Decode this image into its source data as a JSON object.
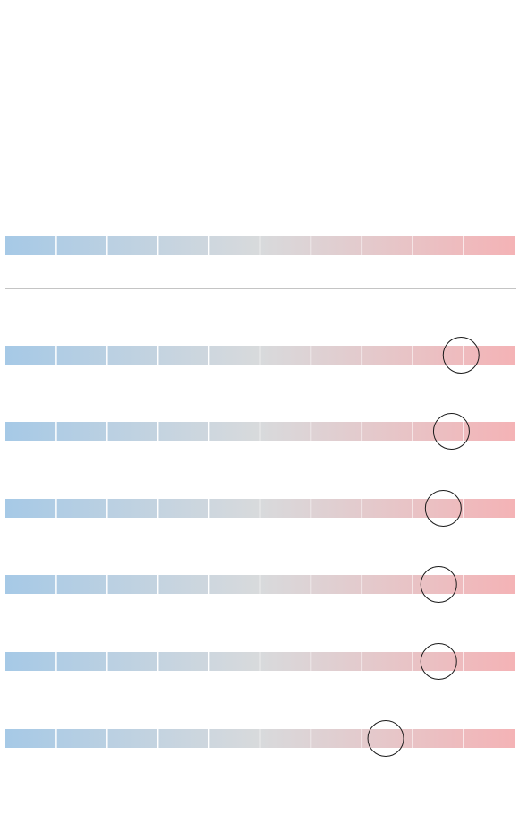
{
  "scale": {
    "segments": 10,
    "gradient": {
      "start": "#a6c9e6",
      "middle": "#d8dadc",
      "end": "#f4b3b6"
    },
    "divider_color": "#ffffff"
  },
  "rule_color": "#8a8a8a",
  "marker_color": "#1a1a1a",
  "rows": [
    {
      "kind": "reference"
    },
    {
      "kind": "rated",
      "marker_position": 0.895
    },
    {
      "kind": "rated",
      "marker_position": 0.876
    },
    {
      "kind": "rated",
      "marker_position": 0.86
    },
    {
      "kind": "rated",
      "marker_position": 0.851
    },
    {
      "kind": "rated",
      "marker_position": 0.851
    },
    {
      "kind": "rated",
      "marker_position": 0.747
    }
  ]
}
